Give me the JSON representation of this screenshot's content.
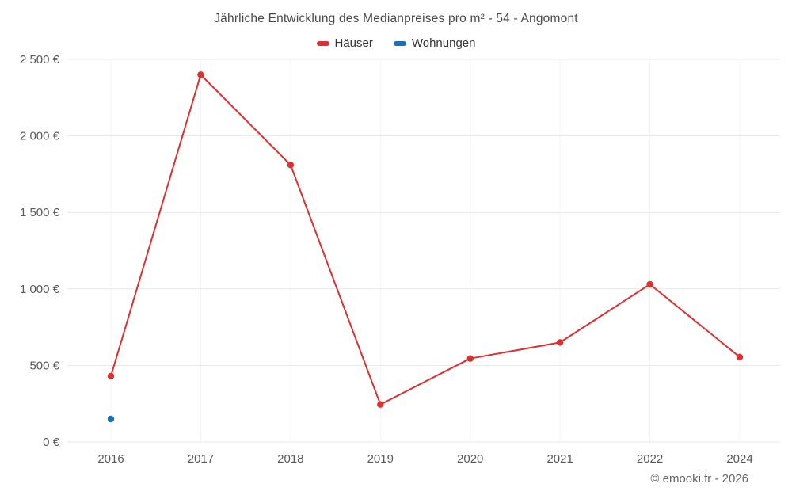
{
  "chart_data": {
    "type": "line",
    "title": "Jährliche Entwicklung des Medianpreises pro m² - 54 - Angomont",
    "categories": [
      "2016",
      "2017",
      "2018",
      "2019",
      "2020",
      "2021",
      "2022",
      "2024"
    ],
    "series": [
      {
        "name": "Häuser",
        "color": "#e02f2f",
        "values": [
          430,
          2400,
          1810,
          245,
          545,
          650,
          1030,
          555
        ]
      },
      {
        "name": "Wohnungen",
        "color": "#1870b8",
        "values": [
          150,
          null,
          null,
          null,
          null,
          null,
          null,
          null
        ]
      }
    ],
    "xlabel": "",
    "ylabel": "",
    "ylim": [
      0,
      2500
    ],
    "ytick_step": 500,
    "ytick_suffix": " €",
    "grid": true,
    "legend_position": "top"
  },
  "footer": "© emooki.fr - 2026",
  "colors": {
    "grid": "#e9e9e9",
    "grid_minor": "#f4f4f4",
    "axis_text": "#595959",
    "title_text": "#4a4a4a"
  }
}
